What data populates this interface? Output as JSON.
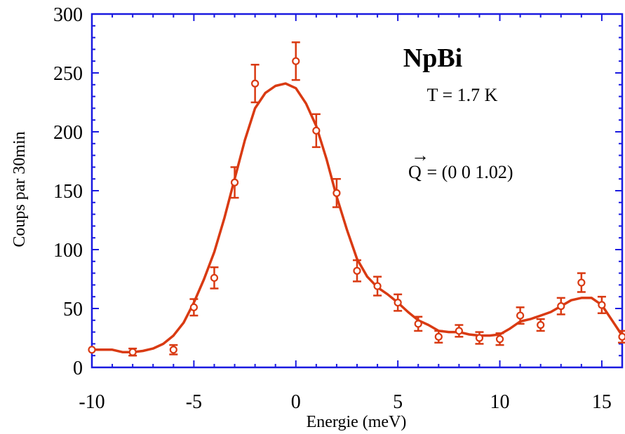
{
  "chart_data": {
    "type": "scatter",
    "xlabel": "Energie (meV)",
    "ylabel": "Coups par 30min",
    "xlim": [
      -10,
      16
    ],
    "ylim": [
      0,
      300
    ],
    "x_ticks": [
      -10,
      -5,
      0,
      5,
      10,
      15
    ],
    "y_ticks": [
      0,
      50,
      100,
      150,
      200,
      250,
      300
    ],
    "grid": false,
    "colors": {
      "data": "#d93a12",
      "axes": "#1a1ae0"
    },
    "annotations": {
      "sample": "NpBi",
      "temperature": "T = 1.7 K",
      "q_symbol": "Q",
      "q_value": " = (0 0 1.02)"
    },
    "series": [
      {
        "kind": "points_with_error",
        "points": [
          {
            "x": -10,
            "y": 15,
            "err": 0
          },
          {
            "x": -8,
            "y": 13,
            "err": 3
          },
          {
            "x": -6,
            "y": 15,
            "err": 4
          },
          {
            "x": -5,
            "y": 51,
            "err": 7
          },
          {
            "x": -4,
            "y": 76,
            "err": 9
          },
          {
            "x": -3,
            "y": 157,
            "err": 13
          },
          {
            "x": -2,
            "y": 241,
            "err": 16
          },
          {
            "x": 0,
            "y": 260,
            "err": 16
          },
          {
            "x": 1,
            "y": 201,
            "err": 14
          },
          {
            "x": 2,
            "y": 148,
            "err": 12
          },
          {
            "x": 3,
            "y": 82,
            "err": 9
          },
          {
            "x": 4,
            "y": 69,
            "err": 8
          },
          {
            "x": 5,
            "y": 55,
            "err": 7
          },
          {
            "x": 6,
            "y": 37,
            "err": 6
          },
          {
            "x": 7,
            "y": 26,
            "err": 5
          },
          {
            "x": 8,
            "y": 31,
            "err": 5
          },
          {
            "x": 9,
            "y": 25,
            "err": 5
          },
          {
            "x": 10,
            "y": 24,
            "err": 5
          },
          {
            "x": 11,
            "y": 44,
            "err": 7
          },
          {
            "x": 12,
            "y": 36,
            "err": 5
          },
          {
            "x": 13,
            "y": 52,
            "err": 7
          },
          {
            "x": 14,
            "y": 72,
            "err": 8
          },
          {
            "x": 15,
            "y": 53,
            "err": 7
          },
          {
            "x": 16,
            "y": 26,
            "err": 5
          }
        ]
      },
      {
        "kind": "fit_curve",
        "points": [
          {
            "x": -10,
            "y": 15
          },
          {
            "x": -9,
            "y": 15
          },
          {
            "x": -8.5,
            "y": 13
          },
          {
            "x": -8,
            "y": 13
          },
          {
            "x": -7.5,
            "y": 14
          },
          {
            "x": -7,
            "y": 16
          },
          {
            "x": -6.5,
            "y": 20
          },
          {
            "x": -6,
            "y": 27
          },
          {
            "x": -5.5,
            "y": 38
          },
          {
            "x": -5,
            "y": 55
          },
          {
            "x": -4.5,
            "y": 75
          },
          {
            "x": -4,
            "y": 98
          },
          {
            "x": -3.5,
            "y": 127
          },
          {
            "x": -3,
            "y": 160
          },
          {
            "x": -2.5,
            "y": 193
          },
          {
            "x": -2,
            "y": 220
          },
          {
            "x": -1.5,
            "y": 233
          },
          {
            "x": -1,
            "y": 239
          },
          {
            "x": -0.5,
            "y": 241
          },
          {
            "x": 0,
            "y": 237
          },
          {
            "x": 0.5,
            "y": 224
          },
          {
            "x": 1,
            "y": 205
          },
          {
            "x": 1.5,
            "y": 177
          },
          {
            "x": 2,
            "y": 145
          },
          {
            "x": 2.5,
            "y": 117
          },
          {
            "x": 3,
            "y": 92
          },
          {
            "x": 3.5,
            "y": 77
          },
          {
            "x": 4,
            "y": 68
          },
          {
            "x": 4.5,
            "y": 62
          },
          {
            "x": 5,
            "y": 55
          },
          {
            "x": 5.5,
            "y": 47
          },
          {
            "x": 6,
            "y": 40
          },
          {
            "x": 6.5,
            "y": 36
          },
          {
            "x": 7,
            "y": 31
          },
          {
            "x": 7.5,
            "y": 30
          },
          {
            "x": 8,
            "y": 30
          },
          {
            "x": 8.5,
            "y": 28
          },
          {
            "x": 9,
            "y": 27
          },
          {
            "x": 9.5,
            "y": 27
          },
          {
            "x": 10,
            "y": 28
          },
          {
            "x": 10.5,
            "y": 33
          },
          {
            "x": 11,
            "y": 39
          },
          {
            "x": 11.5,
            "y": 41
          },
          {
            "x": 12,
            "y": 44
          },
          {
            "x": 12.5,
            "y": 47
          },
          {
            "x": 13,
            "y": 52
          },
          {
            "x": 13.5,
            "y": 57
          },
          {
            "x": 14,
            "y": 59
          },
          {
            "x": 14.5,
            "y": 59
          },
          {
            "x": 15,
            "y": 53
          },
          {
            "x": 15.5,
            "y": 40
          },
          {
            "x": 16,
            "y": 27
          }
        ]
      }
    ]
  }
}
